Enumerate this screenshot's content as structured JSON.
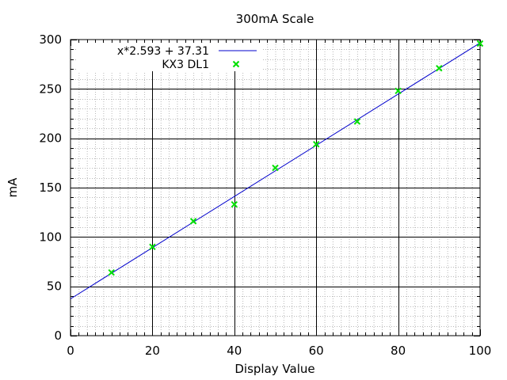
{
  "chart_data": {
    "type": "scatter",
    "title": "300mA Scale",
    "xlabel": "Display Value",
    "ylabel": "mA",
    "xlim": [
      0,
      100
    ],
    "ylim": [
      0,
      300
    ],
    "xticks": [
      0,
      20,
      40,
      60,
      80,
      100
    ],
    "yticks": [
      0,
      50,
      100,
      150,
      200,
      250,
      300
    ],
    "grid": true,
    "minor_grid": true,
    "legend_position": "top-left",
    "series": [
      {
        "name": "x*2.593 + 37.31",
        "kind": "line",
        "color": "#0000cc",
        "slope": 2.593,
        "intercept": 37.31
      },
      {
        "name": "KX3 DL1",
        "kind": "points",
        "marker": "x",
        "color": "#00e000",
        "x": [
          10,
          20,
          30,
          40,
          50,
          60,
          70,
          80,
          90,
          100
        ],
        "y": [
          64,
          90,
          116,
          133,
          170,
          194,
          217,
          248,
          271,
          296
        ]
      }
    ]
  }
}
